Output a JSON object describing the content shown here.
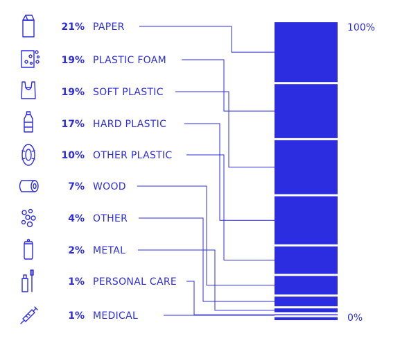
{
  "colors": {
    "accent": "#2c2ce0",
    "background": "#ffffff"
  },
  "chart_data": {
    "type": "bar",
    "stacked": true,
    "orientation": "vertical",
    "title": "",
    "xlabel": "",
    "ylabel": "",
    "ylim": [
      0,
      100
    ],
    "axis_labels": {
      "top": "100%",
      "bottom": "0%"
    },
    "categories": [
      {
        "label": "PAPER",
        "value": 21,
        "value_label": "21%",
        "icon": "milk-carton-icon"
      },
      {
        "label": "PLASTIC FOAM",
        "value": 19,
        "value_label": "19%",
        "icon": "foam-block-icon"
      },
      {
        "label": "SOFT PLASTIC",
        "value": 19,
        "value_label": "19%",
        "icon": "plastic-bag-icon"
      },
      {
        "label": "HARD PLASTIC",
        "value": 17,
        "value_label": "17%",
        "icon": "plastic-bottle-icon"
      },
      {
        "label": "OTHER PLASTIC",
        "value": 10,
        "value_label": "10%",
        "icon": "tire-icon"
      },
      {
        "label": "WOOD",
        "value": 7,
        "value_label": "7%",
        "icon": "log-icon"
      },
      {
        "label": "OTHER",
        "value": 4,
        "value_label": "4%",
        "icon": "pellets-icon"
      },
      {
        "label": "METAL",
        "value": 2,
        "value_label": "2%",
        "icon": "can-icon"
      },
      {
        "label": "PERSONAL CARE",
        "value": 1,
        "value_label": "1%",
        "icon": "toothbrush-icon"
      },
      {
        "label": "MEDICAL",
        "value": 1,
        "value_label": "1%",
        "icon": "syringe-icon"
      }
    ]
  }
}
